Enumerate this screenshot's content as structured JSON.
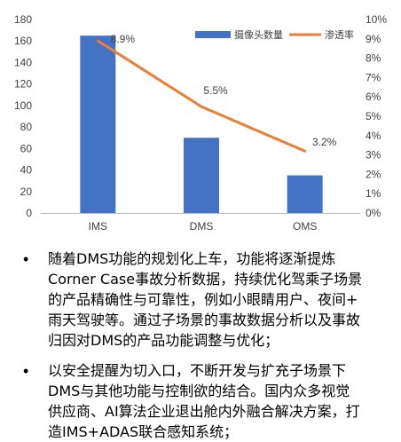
{
  "chart_data": {
    "type": "bar",
    "categories": [
      "IMS",
      "DMS",
      "OMS"
    ],
    "series": [
      {
        "name": "摄像头数量",
        "kind": "bar",
        "axis": "left",
        "values": [
          165,
          70,
          35
        ],
        "color": "#4472C4"
      },
      {
        "name": "渗透率",
        "kind": "line",
        "axis": "right",
        "values": [
          8.9,
          5.5,
          3.2
        ],
        "labels": [
          "8.9%",
          "5.5%",
          "3.2%"
        ],
        "color": "#ED7D31"
      }
    ],
    "left_axis": {
      "ylim": [
        0,
        180
      ],
      "ticks": [
        "0",
        "20",
        "40",
        "60",
        "80",
        "100",
        "120",
        "140",
        "160",
        "180"
      ]
    },
    "right_axis": {
      "ylim": [
        0,
        10
      ],
      "ticks": [
        "0%",
        "1%",
        "2%",
        "3%",
        "4%",
        "5%",
        "6%",
        "7%",
        "8%",
        "9%",
        "10%"
      ]
    },
    "legend": {
      "position": "top-right"
    },
    "grid": false
  },
  "bullets": [
    {
      "dot": "•",
      "lines": [
        "随着DMS功能的规划化上车，功能将逐渐提炼",
        "Corner Case事故分析数据，持续优化驾乘子场景",
        "的产品精确性与可靠性，例如小眼睛用户、夜间+",
        "雨天驾驶等。通过子场景的事故数据分析以及事故",
        "归因对DMS的产品功能调整与优化；"
      ]
    },
    {
      "dot": "•",
      "lines": [
        "以安全提醒为切入口，不断开发与扩充子场景下",
        "DMS与其他功能与控制欲的结合。国内众多视觉",
        "供应商、AI算法企业退出舱内外融合解决方案，打",
        "造IMS+ADAS联合感知系统；"
      ]
    }
  ]
}
